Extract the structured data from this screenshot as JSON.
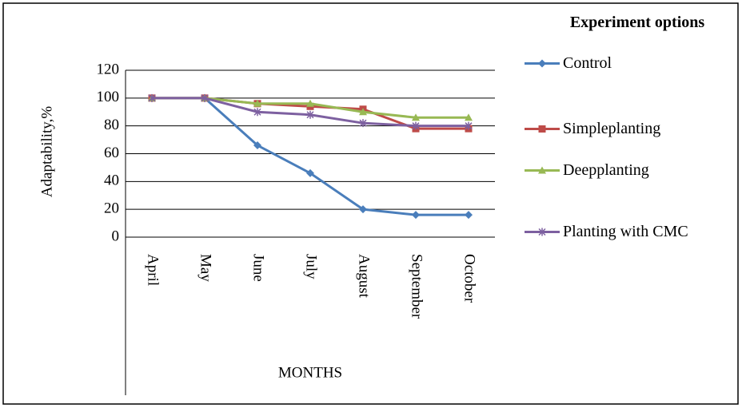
{
  "chart_data": {
    "type": "line",
    "y_label": "Adaptability,%",
    "x_label": "MONTHS",
    "legend_title": "Experiment options",
    "categories": [
      "April",
      "May",
      "June",
      "July",
      "August",
      "September",
      "October"
    ],
    "series": [
      {
        "name": "Control",
        "color": "#4a7ebb",
        "marker": "diamond",
        "values": [
          100,
          100,
          66,
          46,
          20,
          16,
          16
        ]
      },
      {
        "name": "Simpleplanting",
        "color": "#be4b48",
        "marker": "square",
        "values": [
          100,
          100,
          96,
          94,
          92,
          78,
          78
        ]
      },
      {
        "name": "Deepplanting",
        "color": "#98b954",
        "marker": "triangle",
        "values": [
          100,
          100,
          96,
          96,
          90,
          86,
          86
        ]
      },
      {
        "name": "Planting with CMC",
        "color": "#7d60a0",
        "marker": "star",
        "values": [
          100,
          100,
          90,
          88,
          82,
          80,
          80
        ]
      }
    ],
    "ylim": [
      0,
      120
    ],
    "yticks": [
      0,
      20,
      40,
      60,
      80,
      100,
      120
    ],
    "grid": true,
    "legend": "right"
  }
}
